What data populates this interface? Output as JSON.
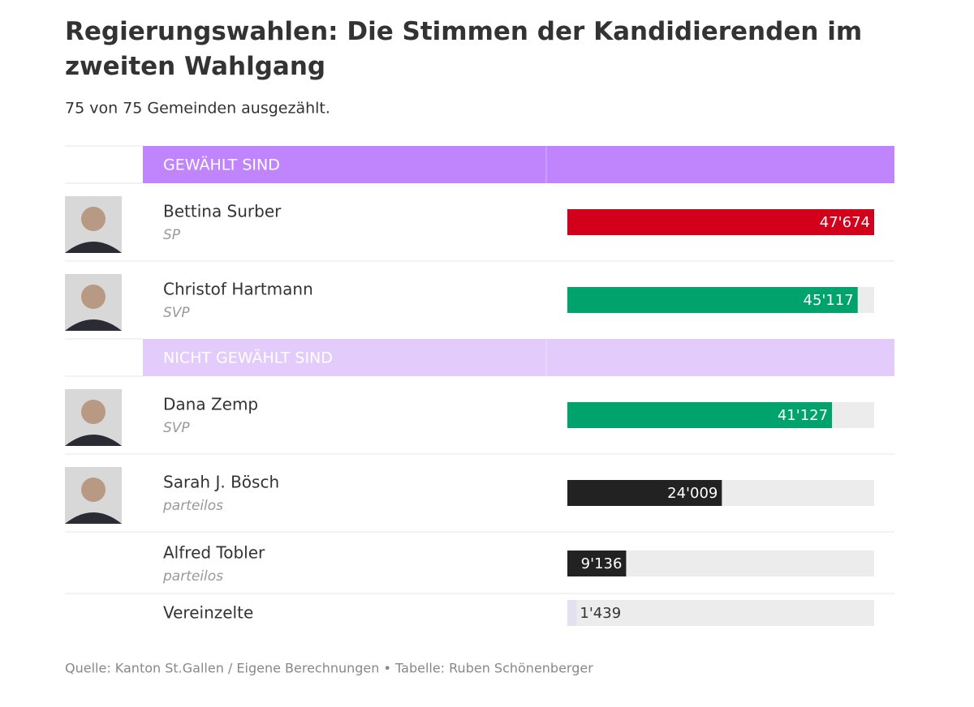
{
  "title": "Regierungswahlen: Die Stimmen der Kandidierenden im zweiten Wahlgang",
  "subtitle": "75 von 75 Gemeinden ausgezählt.",
  "groups": [
    {
      "label": "GEWÄHLT SIND",
      "color": "#c084fc",
      "label_color": "#ffffff",
      "rows": [
        {
          "name": "Bettina Surber",
          "party": "SP",
          "value": 47674,
          "value_label": "47'674",
          "color": "#d3001b",
          "photo": true
        },
        {
          "name": "Christof Hartmann",
          "party": "SVP",
          "value": 45117,
          "value_label": "45'117",
          "color": "#00a36c",
          "photo": true
        }
      ]
    },
    {
      "label": "NICHT GEWÄHLT SIND",
      "color": "#e3ccfc",
      "label_color": "#333333",
      "rows": [
        {
          "name": "Dana Zemp",
          "party": "SVP",
          "value": 41127,
          "value_label": "41'127",
          "color": "#00a36c",
          "photo": true
        },
        {
          "name": "Sarah J. Bösch",
          "party": "parteilos",
          "value": 24009,
          "value_label": "24'009",
          "color": "#222222",
          "photo": true
        },
        {
          "name": "Alfred Tobler",
          "party": "parteilos",
          "value": 9136,
          "value_label": "9'136",
          "color": "#222222",
          "photo": false
        },
        {
          "name": "Vereinzelte",
          "value": 1439,
          "value_label": "1'439",
          "color": "#e1e1f0",
          "photo": false
        }
      ]
    }
  ],
  "footer": "Quelle: Kanton St.Gallen / Eigene Berechnungen • Tabelle: Ruben Schönenberger"
}
